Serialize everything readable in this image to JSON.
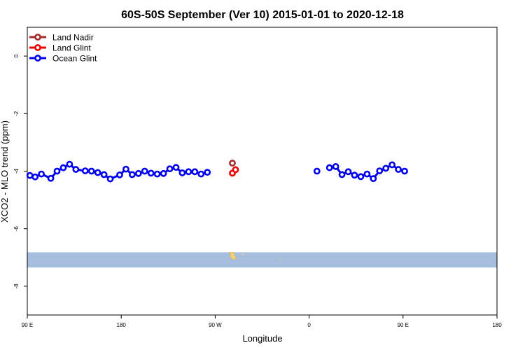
{
  "chart_data": {
    "type": "line",
    "title": "60S-50S September (Ver 10)   2015-01-01 to 2020-12-18",
    "xlabel": "Longitude",
    "ylabel": "XCO2 - MLO trend (ppm)",
    "xlim": [
      90,
      540
    ],
    "ylim": [
      -9,
      1
    ],
    "x_ticks": [
      {
        "value": 90,
        "label": "90 E"
      },
      {
        "value": 180,
        "label": "180"
      },
      {
        "value": 270,
        "label": "90 W"
      },
      {
        "value": 360,
        "label": "0"
      },
      {
        "value": 450,
        "label": "90 E"
      },
      {
        "value": 540,
        "label": "180"
      }
    ],
    "y_ticks": [
      {
        "value": 0,
        "label": "0"
      },
      {
        "value": -2,
        "label": "-2"
      },
      {
        "value": -4,
        "label": "-4"
      },
      {
        "value": -6,
        "label": "-6"
      },
      {
        "value": -8,
        "label": "-8"
      }
    ],
    "legend_position": "top-left",
    "band": {
      "y_min": -7.35,
      "y_max": -6.82,
      "color": "#a7bddd"
    },
    "land_color": "#f2d27a",
    "series": [
      {
        "name": "Land Nadir",
        "color": "#a52a2a",
        "points": [
          [
            286.5,
            -3.72
          ]
        ]
      },
      {
        "name": "Land Glint",
        "color": "#ee0000",
        "points": [
          [
            286.5,
            -4.07
          ],
          [
            289.5,
            -3.95
          ]
        ]
      },
      {
        "name": "Ocean Glint",
        "color": "#0000ee",
        "points": [
          [
            92.5,
            -4.15
          ],
          [
            97.5,
            -4.2
          ],
          [
            103.5,
            -4.1
          ],
          [
            112.5,
            -4.25
          ],
          [
            118.5,
            -4.0
          ],
          [
            124.5,
            -3.88
          ],
          [
            130.5,
            -3.76
          ],
          [
            136.5,
            -3.94
          ],
          [
            145.5,
            -3.99
          ],
          [
            151.5,
            -4.0
          ],
          [
            157.5,
            -4.05
          ],
          [
            163.5,
            -4.12
          ],
          [
            169.5,
            -4.27
          ],
          [
            178.5,
            -4.13
          ],
          [
            184.5,
            -3.93
          ],
          [
            190.5,
            -4.12
          ],
          [
            196.5,
            -4.08
          ],
          [
            202.5,
            -4.0
          ],
          [
            208.5,
            -4.07
          ],
          [
            214.5,
            -4.1
          ],
          [
            220.5,
            -4.08
          ],
          [
            226.5,
            -3.92
          ],
          [
            232.5,
            -3.87
          ],
          [
            238.5,
            -4.06
          ],
          [
            244.5,
            -4.02
          ],
          [
            250.5,
            -4.02
          ],
          [
            256.5,
            -4.1
          ],
          [
            262.5,
            -4.04
          ],
          null,
          [
            367.5,
            -4.0
          ],
          null,
          [
            379.5,
            -3.88
          ],
          [
            385.5,
            -3.84
          ],
          [
            391.5,
            -4.12
          ],
          [
            397.5,
            -4.02
          ],
          [
            403.5,
            -4.14
          ],
          [
            409.5,
            -4.19
          ],
          [
            415.5,
            -4.1
          ],
          [
            421.5,
            -4.26
          ],
          [
            427.5,
            -3.99
          ],
          [
            433.5,
            -3.9
          ],
          [
            439.5,
            -3.78
          ],
          [
            445.5,
            -3.94
          ],
          [
            451.5,
            -4.0
          ]
        ]
      }
    ]
  }
}
